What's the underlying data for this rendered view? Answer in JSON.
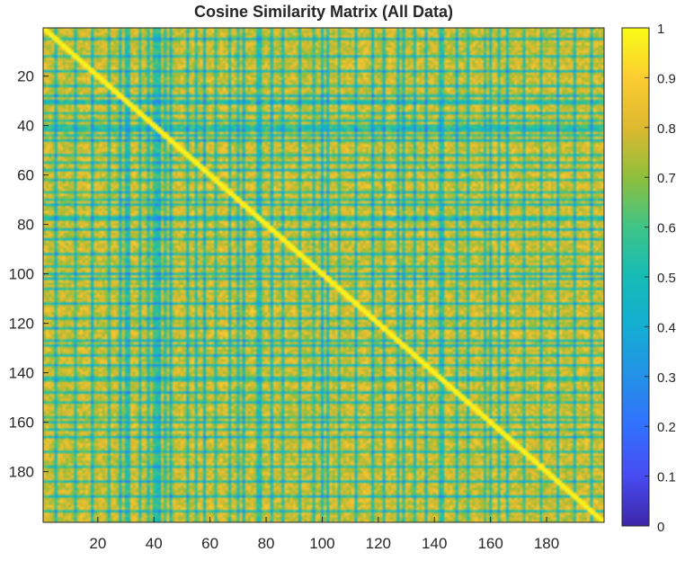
{
  "chart_data": {
    "type": "heatmap",
    "title": "Cosine Similarity Matrix (All Data)",
    "xlabel": "",
    "ylabel": "",
    "size": 200,
    "xlim": [
      0.5,
      200.5
    ],
    "ylim": [
      0.5,
      200.5
    ],
    "x_ticks": [
      20,
      40,
      60,
      80,
      100,
      120,
      140,
      160,
      180
    ],
    "y_ticks": [
      20,
      40,
      60,
      80,
      100,
      120,
      140,
      160,
      180
    ],
    "x_tick_labels": [
      "20",
      "40",
      "60",
      "80",
      "100",
      "120",
      "140",
      "160",
      "180"
    ],
    "y_tick_labels": [
      "20",
      "40",
      "60",
      "80",
      "100",
      "120",
      "140",
      "160",
      "180"
    ],
    "y_axis_direction": "reverse",
    "diagonal_value": 1,
    "typical_value_range": [
      0.75,
      0.92
    ],
    "low_similarity_indices": [
      5,
      12,
      18,
      24,
      28,
      30,
      31,
      35,
      38,
      40,
      41,
      42,
      44,
      46,
      52,
      55,
      58,
      62,
      67,
      70,
      72,
      77,
      78,
      82,
      86,
      92,
      97,
      100,
      102,
      106,
      112,
      118,
      122,
      127,
      129,
      133,
      137,
      142,
      143,
      148,
      152,
      158,
      160,
      163,
      166,
      172,
      178,
      184,
      190,
      196
    ],
    "colormap": "parula",
    "colorbar": {
      "range": [
        0,
        1
      ],
      "ticks": [
        "0",
        "0.1",
        "0.2",
        "0.3",
        "0.4",
        "0.5",
        "0.6",
        "0.7",
        "0.8",
        "0.9",
        "1"
      ],
      "tick_values": [
        0,
        0.1,
        0.2,
        0.3,
        0.4,
        0.5,
        0.6,
        0.7,
        0.8,
        0.9,
        1
      ],
      "location": "right"
    },
    "colors": {
      "low": "#3e26a8",
      "mid": "#16bbb6",
      "high": "#f9fb15",
      "typical": "#f4c033"
    }
  }
}
